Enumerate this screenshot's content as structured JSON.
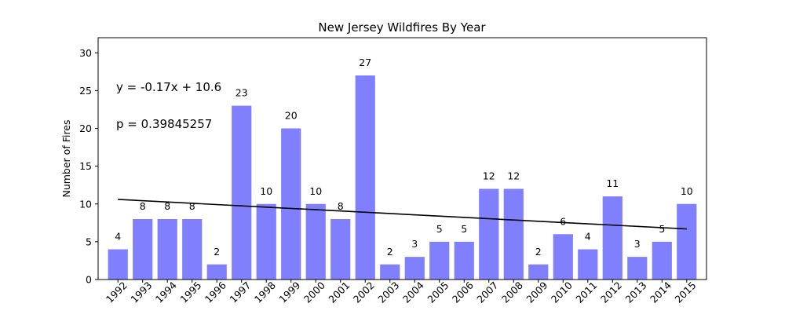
{
  "chart_data": {
    "type": "bar",
    "title": "New Jersey Wildfires By Year",
    "xlabel": "",
    "ylabel": "Number of Fires",
    "categories": [
      "1992",
      "1993",
      "1994",
      "1995",
      "1996",
      "1997",
      "1998",
      "1999",
      "2000",
      "2001",
      "2002",
      "2003",
      "2004",
      "2005",
      "2006",
      "2007",
      "2008",
      "2009",
      "2010",
      "2011",
      "2012",
      "2013",
      "2014",
      "2015"
    ],
    "values": [
      4,
      8,
      8,
      8,
      2,
      23,
      10,
      20,
      10,
      8,
      27,
      2,
      3,
      5,
      5,
      12,
      12,
      2,
      6,
      4,
      11,
      3,
      5,
      10
    ],
    "ylim": [
      0,
      32
    ],
    "yticks": [
      0,
      5,
      10,
      15,
      20,
      25,
      30
    ],
    "bar_color": "#8080ff",
    "trendline": {
      "color": "#000000",
      "equation": "y = -0.17x + 10.6",
      "p_value": "p = 0.39845257",
      "start_y": 10.6,
      "slope": -0.17
    },
    "grid": false,
    "legend": "none"
  }
}
